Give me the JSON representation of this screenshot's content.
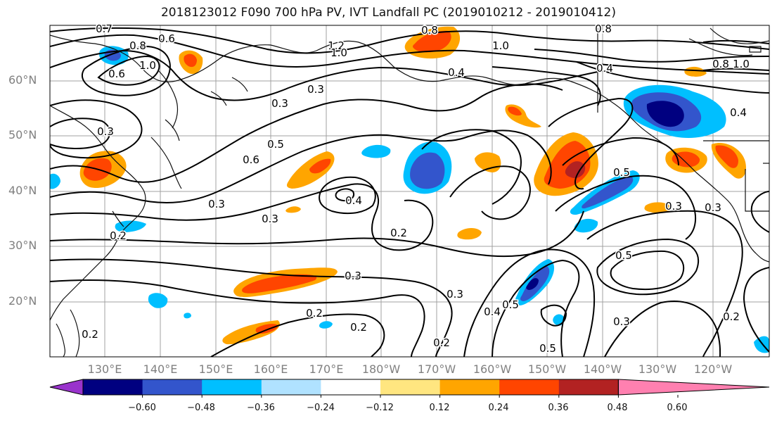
{
  "title": "2018123012 F090 700 hPa PV, IVT Landfall PC (2019010212 - 2019010412)",
  "lat_labels": [
    "60°N",
    "50°N",
    "40°N",
    "30°N",
    "20°N"
  ],
  "lon_labels": [
    "130°E",
    "140°E",
    "150°E",
    "160°E",
    "170°E",
    "180°W",
    "170°W",
    "160°W",
    "150°W",
    "140°W",
    "130°W",
    "120°W"
  ],
  "contour_labels": [
    "0.7",
    "0.8",
    "0.6",
    "1.0",
    "0.6",
    "0.8",
    "1.2",
    "1.0",
    "0.8",
    "1.0",
    "0.8",
    "0.4",
    "0.4",
    "0.3",
    "1.0",
    "0.3",
    "0.3",
    "0.6",
    "0.5",
    "0.4",
    "0.3",
    "0.3",
    "0.2",
    "0.4",
    "0.5",
    "0.5",
    "0.3",
    "0.3",
    "0.3",
    "0.2",
    "0.2",
    "0.2",
    "0.3",
    "0.5",
    "0.4",
    "0.5",
    "0.3",
    "0.2",
    "0.2",
    "0.2"
  ],
  "colorbar": {
    "ticks": [
      "−0.60",
      "−0.48",
      "−0.36",
      "−0.24",
      "−0.12",
      "0.12",
      "0.24",
      "0.36",
      "0.48",
      "0.60"
    ],
    "colors": [
      "#9933cc",
      "#000080",
      "#3355cc",
      "#00bfff",
      "#b0e2ff",
      "#ffffff",
      "#ffe680",
      "#ffa500",
      "#ff4500",
      "#b22222",
      "#ff80b0"
    ]
  },
  "colors": {
    "land": "#111111",
    "grid": "#a0a0a0",
    "contour": "#000000"
  }
}
